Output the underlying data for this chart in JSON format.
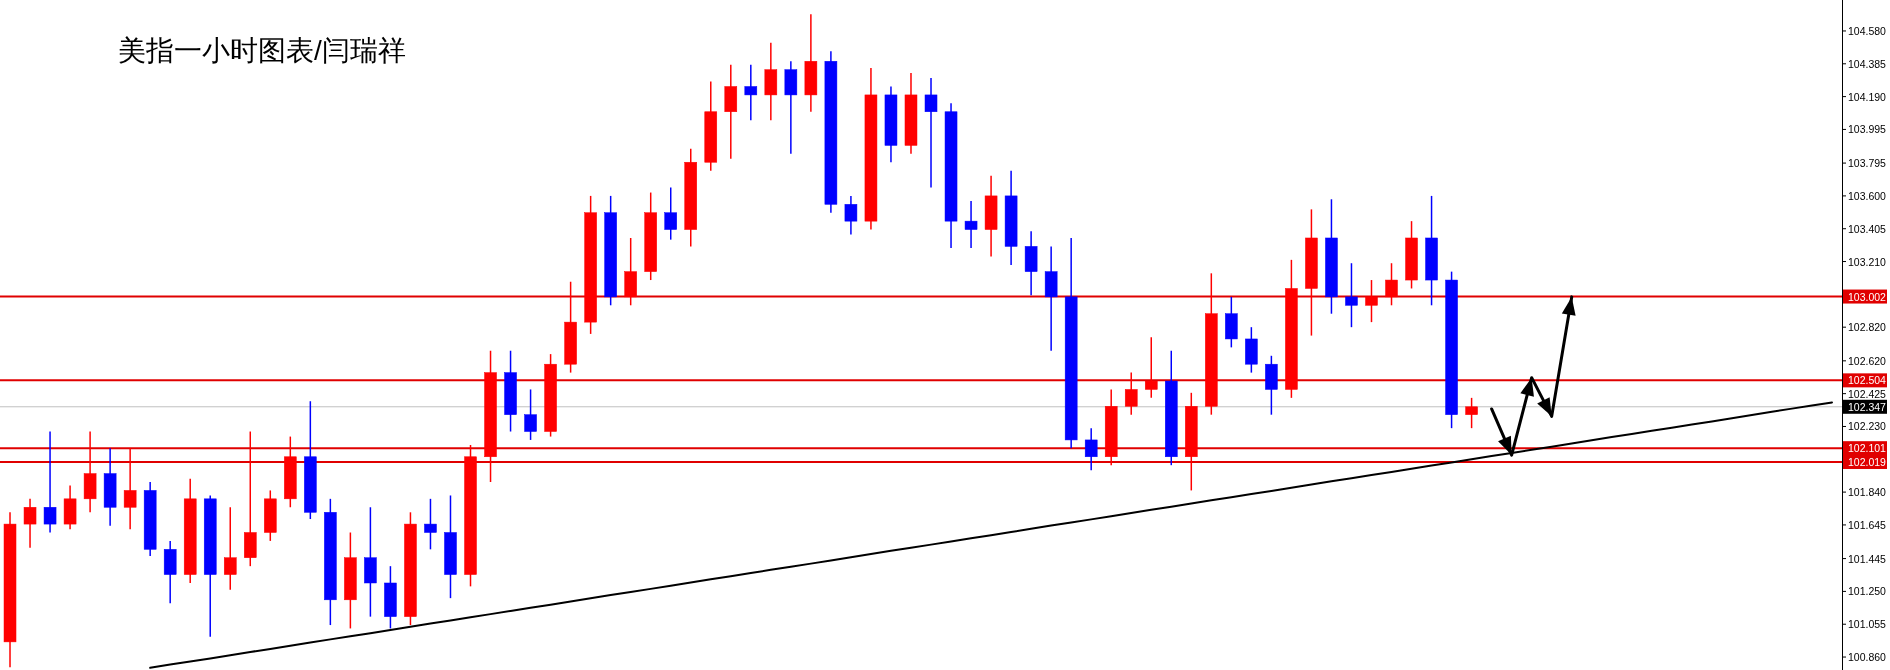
{
  "chart_data": {
    "type": "candlestick",
    "title": "美指一小时图表/闫瑞祥",
    "categories": [
      null,
      null,
      null,
      null,
      null,
      null,
      null,
      null,
      null,
      null,
      null,
      null,
      null,
      null,
      null,
      null,
      null,
      null,
      null,
      null,
      null,
      null,
      null,
      null,
      null,
      null,
      null,
      null,
      null,
      null,
      null,
      null,
      null,
      null,
      null,
      null,
      null,
      null,
      null,
      null,
      null,
      null,
      null,
      null,
      null,
      null,
      null,
      null,
      null,
      null,
      null,
      null,
      null,
      null,
      null,
      null,
      null,
      null,
      null,
      null,
      null,
      null,
      null,
      null,
      null,
      null,
      null,
      null,
      null,
      null,
      null,
      null,
      null,
      null,
      null,
      null,
      null,
      null,
      null,
      null,
      null,
      null,
      null,
      null,
      null,
      null,
      null,
      null,
      null,
      null,
      null,
      null
    ],
    "colors": [
      "#ff0000",
      "#ff0000",
      "#0000ff",
      "#ff0000",
      "#ff0000",
      "#0000ff",
      "#ff0000",
      "#0000ff",
      "#0000ff",
      "#ff0000",
      "#0000ff",
      "#ff0000",
      "#ff0000",
      "#ff0000",
      "#ff0000",
      "#0000ff",
      "#0000ff",
      "#ff0000",
      "#0000ff",
      "#0000ff",
      "#ff0000",
      "#0000ff",
      "#0000ff",
      "#ff0000",
      "#ff0000",
      "#0000ff",
      "#0000ff",
      "#ff0000",
      "#ff0000",
      "#ff0000",
      "#0000ff",
      "#ff0000",
      "#ff0000",
      "#0000ff",
      "#ff0000",
      "#ff0000",
      "#ff0000",
      "#0000ff",
      "#ff0000",
      "#0000ff",
      "#ff0000",
      "#0000ff",
      "#0000ff",
      "#ff0000",
      "#0000ff",
      "#ff0000",
      "#0000ff",
      "#0000ff",
      "#0000ff",
      "#ff0000",
      "#0000ff",
      "#0000ff",
      "#0000ff",
      "#0000ff",
      "#0000ff",
      "#ff0000",
      "#ff0000",
      "#ff0000",
      "#0000ff",
      "#ff0000",
      "#ff0000",
      "#0000ff",
      "#0000ff",
      "#0000ff",
      "#ff0000",
      "#ff0000",
      "#0000ff",
      "#0000ff",
      "#ff0000",
      "#ff0000",
      "#ff0000",
      "#0000ff",
      "#0000ff",
      "#ff0000",
      null,
      null,
      null,
      null,
      null,
      null,
      null,
      null,
      null,
      null,
      null,
      null,
      null,
      null,
      null,
      null,
      null,
      null
    ],
    "ohlc": [
      [
        100.95,
        101.72,
        100.8,
        101.65
      ],
      [
        101.65,
        101.8,
        101.51,
        101.75
      ],
      [
        101.75,
        102.2,
        101.6,
        101.65
      ],
      [
        101.65,
        101.88,
        101.62,
        101.8
      ],
      [
        101.8,
        102.2,
        101.72,
        101.95
      ],
      [
        101.95,
        102.1,
        101.64,
        101.75
      ],
      [
        101.75,
        102.1,
        101.62,
        101.85
      ],
      [
        101.85,
        101.9,
        101.46,
        101.5
      ],
      [
        101.5,
        101.55,
        101.18,
        101.35
      ],
      [
        101.35,
        101.92,
        101.3,
        101.8
      ],
      [
        101.8,
        101.82,
        100.98,
        101.35
      ],
      [
        101.35,
        101.75,
        101.26,
        101.45
      ],
      [
        101.45,
        102.2,
        101.4,
        101.6
      ],
      [
        101.6,
        101.85,
        101.55,
        101.8
      ],
      [
        101.8,
        102.17,
        101.75,
        102.05
      ],
      [
        102.05,
        102.38,
        101.68,
        101.72
      ],
      [
        101.72,
        101.8,
        101.05,
        101.2
      ],
      [
        101.2,
        101.6,
        101.03,
        101.45
      ],
      [
        101.45,
        101.75,
        101.1,
        101.3
      ],
      [
        101.3,
        101.4,
        101.03,
        101.1
      ],
      [
        101.1,
        101.72,
        101.05,
        101.65
      ],
      [
        101.65,
        101.8,
        101.5,
        101.6
      ],
      [
        101.6,
        101.82,
        101.21,
        101.35
      ],
      [
        101.35,
        102.12,
        101.28,
        102.05
      ],
      [
        102.05,
        102.68,
        101.9,
        102.55
      ],
      [
        102.55,
        102.68,
        102.2,
        102.3
      ],
      [
        102.3,
        102.45,
        102.15,
        102.2
      ],
      [
        102.2,
        102.66,
        102.17,
        102.6
      ],
      [
        102.6,
        103.09,
        102.55,
        102.85
      ],
      [
        102.85,
        103.6,
        102.78,
        103.5
      ],
      [
        103.5,
        103.6,
        102.95,
        103.0
      ],
      [
        103.0,
        103.35,
        102.95,
        103.15
      ],
      [
        103.15,
        103.62,
        103.1,
        103.5
      ],
      [
        103.5,
        103.65,
        103.34,
        103.4
      ],
      [
        103.4,
        103.88,
        103.3,
        103.8
      ],
      [
        103.8,
        104.28,
        103.75,
        104.1
      ],
      [
        104.1,
        104.38,
        103.82,
        104.25
      ],
      [
        104.25,
        104.38,
        104.05,
        104.2
      ],
      [
        104.2,
        104.51,
        104.05,
        104.35
      ],
      [
        104.35,
        104.4,
        103.85,
        104.2
      ],
      [
        104.2,
        104.68,
        104.1,
        104.4
      ],
      [
        104.4,
        104.46,
        103.5,
        103.55
      ],
      [
        103.55,
        103.6,
        103.37,
        103.45
      ],
      [
        103.45,
        104.36,
        103.4,
        104.2
      ],
      [
        104.2,
        104.25,
        103.8,
        103.9
      ],
      [
        103.9,
        104.33,
        103.85,
        104.2
      ],
      [
        104.2,
        104.3,
        103.65,
        104.1
      ],
      [
        104.1,
        104.15,
        103.29,
        103.45
      ],
      [
        103.45,
        103.57,
        103.29,
        103.4
      ],
      [
        103.4,
        103.72,
        103.24,
        103.6
      ],
      [
        103.6,
        103.75,
        103.19,
        103.3
      ],
      [
        103.3,
        103.39,
        103.01,
        103.15
      ],
      [
        103.15,
        103.3,
        102.68,
        103.0
      ],
      [
        103.0,
        103.35,
        102.1,
        102.15
      ],
      [
        102.15,
        102.22,
        101.97,
        102.05
      ],
      [
        102.05,
        102.45,
        102.0,
        102.35
      ],
      [
        102.35,
        102.55,
        102.3,
        102.45
      ],
      [
        102.45,
        102.76,
        102.4,
        102.5
      ],
      [
        102.5,
        102.68,
        102.0,
        102.05
      ],
      [
        102.05,
        102.43,
        101.85,
        102.35
      ],
      [
        102.35,
        103.14,
        102.3,
        102.9
      ],
      [
        102.9,
        103.0,
        102.7,
        102.75
      ],
      [
        102.75,
        102.82,
        102.55,
        102.6
      ],
      [
        102.6,
        102.65,
        102.3,
        102.45
      ],
      [
        102.45,
        103.22,
        102.4,
        103.05
      ],
      [
        103.05,
        103.52,
        102.77,
        103.35
      ],
      [
        103.35,
        103.58,
        102.9,
        103.0
      ],
      [
        103.0,
        103.2,
        102.82,
        102.95
      ],
      [
        102.95,
        103.1,
        102.85,
        103.0
      ],
      [
        103.0,
        103.2,
        102.95,
        103.1
      ],
      [
        103.1,
        103.45,
        103.05,
        103.35
      ],
      [
        103.35,
        103.6,
        102.95,
        103.1
      ],
      [
        103.1,
        103.15,
        102.22,
        102.3
      ],
      [
        102.3,
        102.4,
        102.22,
        102.347
      ],
      null,
      null,
      null,
      null,
      null,
      null,
      null,
      null,
      null,
      null,
      null,
      null,
      null,
      null,
      null,
      null,
      null,
      null
    ],
    "series": [
      {
        "type": "line",
        "color": "#000000",
        "values": [
          null,
          null,
          null,
          null,
          null,
          null,
          null,
          100.796,
          100.815,
          100.833,
          100.852,
          100.871,
          100.89,
          100.908,
          100.927,
          100.946,
          100.965,
          100.984,
          101.002,
          101.021,
          101.04,
          101.059,
          101.077,
          101.096,
          101.115,
          101.134,
          101.153,
          101.171,
          101.19,
          101.209,
          101.228,
          101.246,
          101.265,
          101.284,
          101.303,
          101.322,
          101.34,
          101.359,
          101.378,
          101.397,
          101.415,
          101.434,
          101.453,
          101.472,
          101.491,
          101.509,
          101.528,
          101.547,
          101.566,
          101.584,
          101.603,
          101.622,
          101.641,
          101.66,
          101.678,
          101.697,
          101.716,
          101.735,
          101.753,
          101.772,
          101.791,
          101.81,
          101.829,
          101.847,
          101.866,
          101.885,
          101.904,
          101.922,
          101.941,
          101.96,
          101.979,
          101.998,
          102.016,
          102.035,
          102.054,
          102.073,
          102.091,
          102.11,
          102.129,
          102.148,
          102.167,
          102.185,
          102.204,
          102.223,
          102.242,
          102.26,
          102.279,
          102.298,
          102.317,
          102.336,
          102.354,
          102.373
        ]
      },
      {
        "type": "line",
        "color": "#000000",
        "values": [
          null,
          null,
          null,
          null,
          null,
          null,
          null,
          null,
          null,
          null,
          null,
          null,
          null,
          null,
          null,
          null,
          null,
          null,
          null,
          null,
          null,
          null,
          null,
          null,
          null,
          null,
          null,
          null,
          null,
          null,
          null,
          null,
          null,
          null,
          null,
          null,
          null,
          null,
          null,
          null,
          null,
          null,
          null,
          null,
          null,
          null,
          null,
          null,
          null,
          null,
          null,
          null,
          null,
          null,
          null,
          null,
          null,
          null,
          null,
          null,
          null,
          null,
          null,
          null,
          null,
          null,
          null,
          null,
          null,
          null,
          null,
          null,
          null,
          null,
          102.334,
          102.06,
          102.52,
          102.29,
          103.0,
          null,
          null,
          null,
          null,
          null,
          null,
          null,
          null,
          null,
          null,
          null,
          null,
          null
        ]
      }
    ],
    "ref_lines": [
      {
        "axis": "y",
        "value": 103.002,
        "label": "103.002",
        "color": "#e00000"
      },
      {
        "axis": "y",
        "value": 102.504,
        "label": "102.504",
        "color": "#e00000"
      },
      {
        "axis": "y",
        "value": 102.347,
        "label": "102.347",
        "color": "#c0c0c0"
      },
      {
        "axis": "y",
        "value": 102.101,
        "label": "102.101",
        "color": "#e00000"
      },
      {
        "axis": "y",
        "value": 102.019,
        "label": "102.019",
        "color": "#e00000"
      }
    ],
    "ylim": [
      100.783,
      104.764
    ],
    "yticks": [
      {
        "value": 104.58,
        "label": "104.580"
      },
      {
        "value": 104.385,
        "label": "104.385"
      },
      {
        "value": 104.19,
        "label": "104.190"
      },
      {
        "value": 103.995,
        "label": "103.995"
      },
      {
        "value": 103.795,
        "label": "103.795"
      },
      {
        "value": 103.6,
        "label": "103.600"
      },
      {
        "value": 103.405,
        "label": "103.405"
      },
      {
        "value": 103.21,
        "label": "103.210"
      },
      {
        "value": 102.82,
        "label": "102.820"
      },
      {
        "value": 102.62,
        "label": "102.620"
      },
      {
        "value": 102.425,
        "label": "102.425"
      },
      {
        "value": 102.23,
        "label": "102.230"
      },
      {
        "value": 101.84,
        "label": "101.840"
      },
      {
        "value": 101.645,
        "label": "101.645"
      },
      {
        "value": 101.445,
        "label": "101.445"
      },
      {
        "value": 101.25,
        "label": "101.250"
      },
      {
        "value": 101.055,
        "label": "101.055"
      },
      {
        "value": 100.86,
        "label": "100.860"
      }
    ],
    "tick_labels": "y",
    "grid": false
  }
}
